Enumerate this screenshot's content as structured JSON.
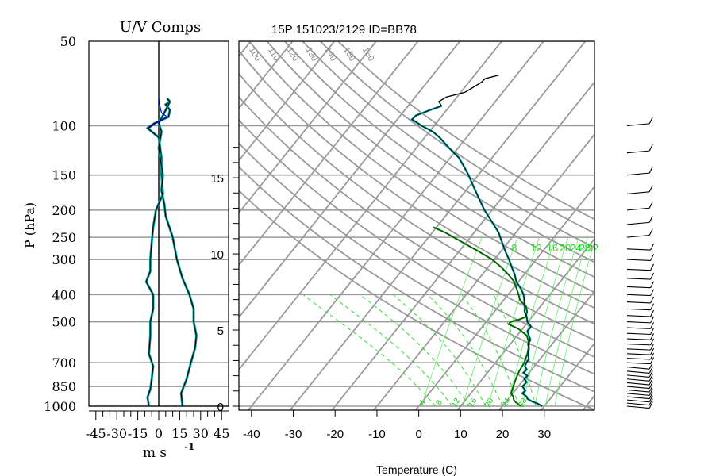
{
  "chart_data": [
    {
      "type": "line",
      "title": "U/V Comps",
      "xlabel": "m s",
      "xlabel_superscript": "-1",
      "ylabel": "P (hPa)",
      "y_log_scale": true,
      "yticks": [
        50,
        100,
        150,
        200,
        250,
        300,
        400,
        500,
        700,
        850,
        1000
      ],
      "ylim_hPa": [
        1000,
        50
      ],
      "xticks": [
        "-45",
        "-30",
        "-15",
        "0",
        "15",
        "30",
        "45"
      ],
      "xlim": [
        -50,
        50
      ],
      "grid": true,
      "series": [
        {
          "component": "U",
          "color": "#000000",
          "points_hPa_ms": [
            [
              1000,
              -7
            ],
            [
              930,
              -8
            ],
            [
              870,
              -6
            ],
            [
              800,
              -5
            ],
            [
              720,
              -4
            ],
            [
              650,
              -7
            ],
            [
              560,
              -6
            ],
            [
              500,
              -6
            ],
            [
              450,
              -4
            ],
            [
              400,
              -4
            ],
            [
              360,
              -9
            ],
            [
              330,
              -6
            ],
            [
              300,
              -6
            ],
            [
              260,
              -5
            ],
            [
              230,
              -4
            ],
            [
              200,
              -2
            ],
            [
              175,
              3
            ],
            [
              150,
              2
            ],
            [
              130,
              2
            ],
            [
              110,
              0
            ],
            [
              102,
              -8
            ],
            [
              98,
              -3
            ],
            [
              93,
              7
            ],
            [
              88,
              8
            ],
            [
              84,
              5
            ],
            [
              82,
              8
            ],
            [
              80,
              6
            ]
          ]
        },
        {
          "component": "V",
          "color": "#000000",
          "points_hPa_ms": [
            [
              1000,
              17
            ],
            [
              900,
              16
            ],
            [
              800,
              20
            ],
            [
              700,
              23
            ],
            [
              620,
              26
            ],
            [
              560,
              27
            ],
            [
              500,
              25
            ],
            [
              450,
              25
            ],
            [
              400,
              22
            ],
            [
              350,
              17
            ],
            [
              300,
              13
            ],
            [
              250,
              10
            ],
            [
              210,
              5
            ],
            [
              190,
              4
            ],
            [
              170,
              2
            ],
            [
              150,
              3
            ],
            [
              120,
              0
            ],
            [
              105,
              2
            ],
            [
              98,
              0
            ],
            [
              92,
              3
            ],
            [
              88,
              5
            ],
            [
              82,
              8
            ]
          ]
        },
        {
          "component": "overlay",
          "color": "#0000cc",
          "points_hPa_ms": [
            [
              102,
              -7
            ],
            [
              98,
              -2
            ],
            [
              93,
              6
            ],
            [
              90,
              2
            ],
            [
              86,
              1
            ],
            [
              80,
              0
            ]
          ]
        }
      ]
    },
    {
      "type": "line",
      "title": "15P 151023/2129 ID=BB78",
      "xlabel": "Temperature (C)",
      "xticks": [
        "-40",
        "-30",
        "-20",
        "-10",
        "0",
        "10",
        "20",
        "30"
      ],
      "xlim_C": [
        -43,
        42
      ],
      "height_ticks": [
        "0",
        "5",
        "10",
        "15"
      ],
      "isotherm_labels": [
        "-50",
        "-40",
        "-30",
        "-20",
        "-10",
        "0",
        "10",
        "20",
        "30"
      ],
      "dry_adiabat_labels": [
        "40",
        "50",
        "60",
        "70",
        "80",
        "90",
        "100",
        "110",
        "120",
        "130",
        "140",
        "150",
        "160"
      ],
      "mixing_ratio_labels": [
        "8",
        "12",
        "16",
        "20",
        "24",
        "28",
        "32"
      ],
      "wet_adiabat_labels": [
        "4",
        "8",
        "12",
        "16",
        "20",
        "24",
        "28"
      ],
      "grid": true,
      "series": [
        {
          "name": "",
          "color": "#000000",
          "points_hPa_C": [
            [
              1000,
              29.5
            ],
            [
              980,
              28
            ],
            [
              960,
              26
            ],
            [
              940,
              24.5
            ],
            [
              925,
              24
            ],
            [
              900,
              22.3
            ],
            [
              880,
              22.5
            ],
            [
              850,
              21
            ],
            [
              820,
              21.2
            ],
            [
              800,
              20
            ],
            [
              780,
              20.2
            ],
            [
              760,
              18.6
            ],
            [
              740,
              18.8
            ],
            [
              720,
              17.7
            ],
            [
              700,
              17.4
            ],
            [
              680,
              17.3
            ],
            [
              650,
              16.1
            ],
            [
              620,
              15.2
            ],
            [
              600,
              14.2
            ],
            [
              580,
              14
            ],
            [
              560,
              12.8
            ],
            [
              540,
              11.6
            ],
            [
              520,
              11.6
            ],
            [
              500,
              9.8
            ],
            [
              480,
              8.7
            ],
            [
              460,
              7.2
            ],
            [
              440,
              6.2
            ],
            [
              420,
              5
            ],
            [
              400,
              3.7
            ],
            [
              380,
              1.8
            ],
            [
              360,
              -0.5
            ],
            [
              340,
              -2.2
            ],
            [
              320,
              -4.3
            ],
            [
              300,
              -6.5
            ],
            [
              280,
              -9
            ],
            [
              260,
              -11.5
            ],
            [
              240,
              -14.2
            ],
            [
              220,
              -17.8
            ],
            [
              200,
              -21.8
            ],
            [
              180,
              -25.7
            ],
            [
              160,
              -30
            ],
            [
              150,
              -32.3
            ],
            [
              140,
              -35
            ],
            [
              130,
              -38
            ],
            [
              120,
              -42.2
            ],
            [
              110,
              -46.5
            ],
            [
              105,
              -49.2
            ],
            [
              100,
              -53
            ],
            [
              97,
              -55
            ],
            [
              95,
              -56.5
            ],
            [
              92,
              -56.3
            ],
            [
              88,
              -54
            ],
            [
              85,
              -52
            ],
            [
              82,
              -53.5
            ],
            [
              79,
              -52.5
            ],
            [
              76,
              -49
            ],
            [
              73,
              -48
            ],
            [
              70,
              -47
            ],
            [
              68,
              -46.8
            ],
            [
              66,
              -44.2
            ]
          ]
        },
        {
          "name": "",
          "color": "#00aaaa",
          "points_hPa_C": [
            [
              1000,
              29.5
            ],
            [
              980,
              28
            ],
            [
              960,
              26
            ],
            [
              940,
              24.5
            ],
            [
              925,
              24
            ],
            [
              900,
              22.3
            ],
            [
              880,
              22.5
            ],
            [
              850,
              21
            ],
            [
              820,
              21.2
            ],
            [
              800,
              20
            ],
            [
              780,
              20.2
            ],
            [
              760,
              18.6
            ],
            [
              740,
              18.8
            ],
            [
              720,
              17.7
            ],
            [
              700,
              17.4
            ],
            [
              680,
              17.3
            ],
            [
              650,
              16.1
            ],
            [
              620,
              15.2
            ],
            [
              600,
              14.2
            ],
            [
              580,
              14
            ],
            [
              560,
              12.8
            ],
            [
              540,
              11.6
            ],
            [
              520,
              11.6
            ],
            [
              500,
              9.8
            ],
            [
              480,
              8.7
            ],
            [
              460,
              7.2
            ],
            [
              440,
              6.2
            ],
            [
              420,
              5
            ],
            [
              400,
              3.7
            ],
            [
              380,
              1.8
            ],
            [
              360,
              -0.5
            ],
            [
              340,
              -2.2
            ],
            [
              320,
              -4.3
            ],
            [
              300,
              -6.5
            ],
            [
              280,
              -9
            ],
            [
              260,
              -11.5
            ],
            [
              240,
              -14.2
            ],
            [
              220,
              -17.8
            ],
            [
              200,
              -21.8
            ],
            [
              180,
              -25.7
            ],
            [
              160,
              -30
            ],
            [
              150,
              -32.3
            ],
            [
              140,
              -35
            ],
            [
              130,
              -38
            ],
            [
              120,
              -42.2
            ],
            [
              110,
              -46.5
            ],
            [
              105,
              -49.2
            ],
            [
              100,
              -53
            ],
            [
              97,
              -55
            ],
            [
              95,
              -56.5
            ],
            [
              92,
              -56.3
            ],
            [
              88,
              -54
            ],
            [
              85,
              -52
            ]
          ]
        },
        {
          "name": "",
          "color": "#006600",
          "points_hPa_C": [
            [
              1000,
              24.5
            ],
            [
              970,
              22.5
            ],
            [
              950,
              21.5
            ],
            [
              925,
              20.8
            ],
            [
              900,
              19.6
            ],
            [
              850,
              18.8
            ],
            [
              800,
              18
            ],
            [
              750,
              17.3
            ],
            [
              700,
              16.9
            ],
            [
              650,
              15.9
            ],
            [
              600,
              14.5
            ],
            [
              560,
              12.3
            ],
            [
              530,
              9
            ],
            [
              510,
              5.8
            ],
            [
              500,
              5.8
            ],
            [
              490,
              7.5
            ],
            [
              480,
              8.5
            ],
            [
              460,
              7.8
            ],
            [
              440,
              6.5
            ],
            [
              420,
              4
            ],
            [
              400,
              2.5
            ],
            [
              380,
              0.8
            ],
            [
              360,
              -1
            ],
            [
              340,
              -3.7
            ],
            [
              320,
              -6.8
            ],
            [
              300,
              -10.5
            ],
            [
              280,
              -15.5
            ],
            [
              260,
              -21
            ],
            [
              240,
              -27
            ],
            [
              230,
              -30.8
            ]
          ]
        }
      ]
    }
  ],
  "wind_barbs": {
    "color": "#000000",
    "levels_hPa": [
      1000,
      975,
      950,
      925,
      900,
      875,
      850,
      825,
      800,
      775,
      750,
      725,
      700,
      675,
      650,
      625,
      600,
      575,
      550,
      525,
      500,
      475,
      450,
      425,
      400,
      375,
      350,
      325,
      300,
      275,
      250,
      225,
      200,
      175,
      150,
      125,
      100
    ]
  }
}
